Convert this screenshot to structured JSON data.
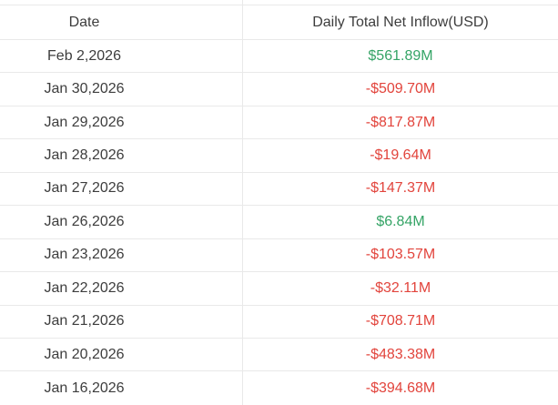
{
  "table": {
    "title_semantic": "daily-total-net-inflow-table",
    "columns": [
      {
        "label": "Date"
      },
      {
        "label": "Daily Total Net Inflow(USD)"
      }
    ],
    "rows": [
      {
        "date": "Feb 2,2026",
        "value": "$561.89M",
        "direction": "positive"
      },
      {
        "date": "Jan 30,2026",
        "value": "-$509.70M",
        "direction": "negative"
      },
      {
        "date": "Jan 29,2026",
        "value": "-$817.87M",
        "direction": "negative"
      },
      {
        "date": "Jan 28,2026",
        "value": "-$19.64M",
        "direction": "negative"
      },
      {
        "date": "Jan 27,2026",
        "value": "-$147.37M",
        "direction": "negative"
      },
      {
        "date": "Jan 26,2026",
        "value": "$6.84M",
        "direction": "positive"
      },
      {
        "date": "Jan 23,2026",
        "value": "-$103.57M",
        "direction": "negative"
      },
      {
        "date": "Jan 22,2026",
        "value": "-$32.11M",
        "direction": "negative"
      },
      {
        "date": "Jan 21,2026",
        "value": "-$708.71M",
        "direction": "negative"
      },
      {
        "date": "Jan 20,2026",
        "value": "-$483.38M",
        "direction": "negative"
      },
      {
        "date": "Jan 16,2026",
        "value": "-$394.68M",
        "direction": "negative"
      }
    ],
    "colors": {
      "positive": "#35a466",
      "negative": "#e2443c",
      "border": "#e9e9e9",
      "header_text": "#3d3d3d",
      "cell_text": "#3d3d3d",
      "background": "#ffffff"
    }
  }
}
